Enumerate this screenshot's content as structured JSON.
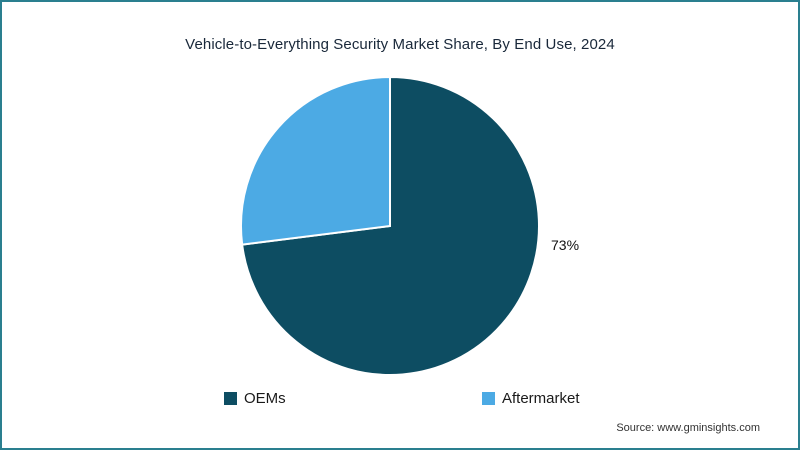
{
  "page": {
    "title": "Vehicle-to-Everything Security Market Share, By End Use, 2024",
    "source": "Source: www.gminsights.com",
    "frame_color": "#2a7f8f",
    "background": "#ffffff"
  },
  "chart_data": {
    "type": "pie",
    "title": "Vehicle-to-Everything Security Market Share, By End Use, 2024",
    "unit": "percent",
    "slices": [
      {
        "label": "OEMs",
        "value": 73,
        "color": "#0d4d62",
        "data_label": "73%"
      },
      {
        "label": "Aftermarket",
        "value": 27,
        "color": "#4caae4"
      }
    ],
    "start_angle_deg": 0,
    "clockwise": true,
    "separator_stroke": "#ffffff",
    "legend_position": "bottom",
    "visible_data_labels": [
      "73%"
    ]
  }
}
